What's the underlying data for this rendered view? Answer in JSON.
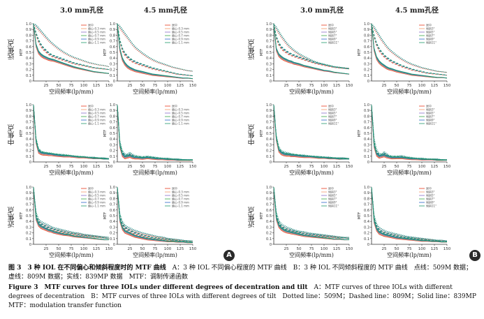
{
  "headers": {
    "col1": "3.0 mm孔径",
    "col2": "4.5 mm孔径",
    "col3": "3.0 mm孔径",
    "col4": "4.5 mm孔径"
  },
  "row_labels": [
    "远焦点",
    "中焦点",
    "近焦点"
  ],
  "panel_badges": [
    "A",
    "B"
  ],
  "axis": {
    "xlabel": "空间频率(lp/mm)",
    "ylabel": "MTF",
    "xticks": [
      "25",
      "50",
      "75",
      "100",
      "125",
      "150"
    ],
    "yticks": [
      "0",
      "0.1",
      "0.2",
      "0.3",
      "0.4",
      "0.5",
      "0.6",
      "0.7",
      "0.8",
      "0.9",
      "1.0"
    ]
  },
  "legend_A": [
    "居中",
    "偏心-0.3 mm",
    "偏心-0.5 mm",
    "偏心-0.7 mm",
    "偏心-0.9 mm",
    "偏心-1.1 mm"
  ],
  "legend_B": [
    "居中",
    "倾斜3°",
    "倾斜5°",
    "倾斜7°",
    "倾斜9°",
    "倾斜11°"
  ],
  "colors": {
    "centered": "#e63a1e",
    "s1": "#f29a6a",
    "s2": "#8a6ec8",
    "s3": "#3aa848",
    "s4": "#2a68c8",
    "s5": "#1f9a6a"
  },
  "caption": {
    "cn_title": "图 3　3 种 IOL 在不同偏心和倾斜程度时的 MTF 曲线",
    "cn_body": "A：3 种 IOL 不同偏心程度的 MTF 曲线　B：3 种 IOL 不同倾斜程度的 MTF 曲线　点线：509M 数据；虚线：809M 数据；实线：839MP 数据　MTF：调制传递函数",
    "en_title": "Figure 3　MTF curves for three IOLs under different degrees of decentration and tilt",
    "en_body": "A：MTF curves of three IOLs with different degrees of decentration　B：MTF curves of three IOLs with different degrees of tilt　Dotted line：509M；Dashed line：809M；Solid line：839MP　MTF：modulation transfer function"
  },
  "chart_data": {
    "type": "line",
    "xlabel": "空间频率(lp/mm)",
    "ylabel": "MTF",
    "xlim": [
      0,
      150
    ],
    "ylim": [
      0,
      1.0
    ],
    "x": [
      0,
      5,
      10,
      15,
      20,
      25,
      30,
      35,
      40,
      50,
      60,
      70,
      80,
      90,
      100,
      110,
      120,
      130,
      140,
      150
    ],
    "panels": [
      {
        "panel": "A",
        "column": "3.0 mm孔径",
        "focus": "远焦点",
        "series_labels": "legend_A",
        "families": {
          "dotted": [
            1.0,
            0.96,
            0.91,
            0.86,
            0.81,
            0.76,
            0.71,
            0.67,
            0.63,
            0.56,
            0.5,
            0.45,
            0.41,
            0.38,
            0.35,
            0.32,
            0.3,
            0.28,
            0.27,
            0.25
          ],
          "dashed": [
            1.0,
            0.82,
            0.7,
            0.62,
            0.56,
            0.52,
            0.48,
            0.45,
            0.43,
            0.4,
            0.37,
            0.34,
            0.31,
            0.29,
            0.27,
            0.25,
            0.23,
            0.22,
            0.21,
            0.2
          ],
          "solid": [
            1.0,
            0.62,
            0.5,
            0.45,
            0.42,
            0.4,
            0.38,
            0.37,
            0.36,
            0.33,
            0.3,
            0.27,
            0.24,
            0.22,
            0.2,
            0.18,
            0.16,
            0.15,
            0.14,
            0.13
          ]
        }
      },
      {
        "panel": "A",
        "column": "4.5 mm孔径",
        "focus": "远焦点",
        "series_labels": "legend_A",
        "families": {
          "dotted": [
            1.0,
            0.94,
            0.88,
            0.82,
            0.76,
            0.7,
            0.64,
            0.59,
            0.55,
            0.48,
            0.42,
            0.37,
            0.33,
            0.3,
            0.27,
            0.24,
            0.22,
            0.2,
            0.18,
            0.17
          ],
          "dashed": [
            1.0,
            0.7,
            0.55,
            0.47,
            0.42,
            0.38,
            0.35,
            0.33,
            0.31,
            0.28,
            0.25,
            0.22,
            0.2,
            0.18,
            0.16,
            0.14,
            0.12,
            0.11,
            0.1,
            0.09
          ],
          "solid": [
            1.0,
            0.55,
            0.38,
            0.3,
            0.25,
            0.22,
            0.2,
            0.18,
            0.17,
            0.15,
            0.13,
            0.11,
            0.1,
            0.09,
            0.08,
            0.07,
            0.06,
            0.05,
            0.05,
            0.04
          ]
        }
      },
      {
        "panel": "B",
        "column": "3.0 mm孔径",
        "focus": "远焦点",
        "series_labels": "legend_B",
        "families": {
          "dotted": [
            1.0,
            0.92,
            0.85,
            0.78,
            0.72,
            0.66,
            0.61,
            0.57,
            0.53,
            0.47,
            0.42,
            0.38,
            0.34,
            0.31,
            0.29,
            0.27,
            0.25,
            0.24,
            0.23,
            0.22
          ],
          "dashed": [
            1.0,
            0.76,
            0.65,
            0.58,
            0.54,
            0.51,
            0.48,
            0.46,
            0.44,
            0.41,
            0.38,
            0.35,
            0.32,
            0.3,
            0.28,
            0.26,
            0.24,
            0.23,
            0.22,
            0.21
          ],
          "solid": [
            1.0,
            0.55,
            0.45,
            0.41,
            0.38,
            0.36,
            0.34,
            0.33,
            0.31,
            0.29,
            0.26,
            0.24,
            0.22,
            0.2,
            0.18,
            0.17,
            0.15,
            0.14,
            0.13,
            0.12
          ]
        }
      },
      {
        "panel": "B",
        "column": "4.5 mm孔径",
        "focus": "远焦点",
        "series_labels": "legend_B",
        "families": {
          "dotted": [
            1.0,
            0.93,
            0.86,
            0.79,
            0.72,
            0.66,
            0.6,
            0.55,
            0.51,
            0.44,
            0.38,
            0.33,
            0.29,
            0.26,
            0.23,
            0.21,
            0.19,
            0.17,
            0.16,
            0.15
          ],
          "dashed": [
            1.0,
            0.78,
            0.64,
            0.55,
            0.49,
            0.44,
            0.4,
            0.37,
            0.34,
            0.3,
            0.26,
            0.23,
            0.2,
            0.18,
            0.16,
            0.14,
            0.13,
            0.12,
            0.11,
            0.1
          ],
          "solid": [
            1.0,
            0.55,
            0.4,
            0.33,
            0.29,
            0.26,
            0.23,
            0.21,
            0.2,
            0.17,
            0.15,
            0.13,
            0.11,
            0.1,
            0.09,
            0.08,
            0.07,
            0.06,
            0.06,
            0.05
          ]
        }
      },
      {
        "panel": "A",
        "column": "3.0 mm孔径",
        "focus": "中焦点",
        "series_labels": "legend_A",
        "families": {
          "dotted": [
            1.0,
            0.4,
            0.22,
            0.17,
            0.15,
            0.15,
            0.14,
            0.14,
            0.13,
            0.12,
            0.12,
            0.11,
            0.1,
            0.09,
            0.09,
            0.08,
            0.08,
            0.07,
            0.07,
            0.06
          ],
          "dashed": [
            1.0,
            0.38,
            0.2,
            0.16,
            0.15,
            0.14,
            0.14,
            0.13,
            0.13,
            0.12,
            0.11,
            0.1,
            0.09,
            0.09,
            0.08,
            0.07,
            0.07,
            0.06,
            0.06,
            0.06
          ],
          "solid": [
            1.0,
            0.35,
            0.18,
            0.15,
            0.14,
            0.14,
            0.13,
            0.13,
            0.12,
            0.11,
            0.1,
            0.1,
            0.09,
            0.08,
            0.08,
            0.07,
            0.06,
            0.06,
            0.05,
            0.05
          ]
        }
      },
      {
        "panel": "A",
        "column": "4.5 mm孔径",
        "focus": "中焦点",
        "series_labels": "legend_A",
        "families": {
          "dotted": [
            1.0,
            0.35,
            0.18,
            0.12,
            0.12,
            0.15,
            0.12,
            0.1,
            0.09,
            0.08,
            0.09,
            0.08,
            0.07,
            0.06,
            0.06,
            0.05,
            0.05,
            0.04,
            0.04,
            0.04
          ],
          "dashed": [
            1.0,
            0.3,
            0.15,
            0.1,
            0.1,
            0.12,
            0.1,
            0.08,
            0.08,
            0.07,
            0.08,
            0.07,
            0.06,
            0.05,
            0.05,
            0.04,
            0.04,
            0.04,
            0.03,
            0.03
          ],
          "solid": [
            1.0,
            0.28,
            0.12,
            0.08,
            0.09,
            0.1,
            0.08,
            0.07,
            0.07,
            0.06,
            0.07,
            0.06,
            0.05,
            0.05,
            0.04,
            0.04,
            0.03,
            0.03,
            0.03,
            0.03
          ]
        }
      },
      {
        "panel": "B",
        "column": "3.0 mm孔径",
        "focus": "中焦点",
        "series_labels": "legend_B",
        "families": {
          "dotted": [
            1.0,
            0.45,
            0.25,
            0.18,
            0.16,
            0.15,
            0.14,
            0.13,
            0.12,
            0.11,
            0.11,
            0.1,
            0.09,
            0.09,
            0.08,
            0.08,
            0.07,
            0.07,
            0.07,
            0.06
          ],
          "dashed": [
            1.0,
            0.42,
            0.22,
            0.16,
            0.14,
            0.13,
            0.13,
            0.12,
            0.12,
            0.11,
            0.1,
            0.09,
            0.09,
            0.08,
            0.08,
            0.07,
            0.07,
            0.06,
            0.06,
            0.06
          ],
          "solid": [
            1.0,
            0.4,
            0.2,
            0.15,
            0.13,
            0.12,
            0.12,
            0.11,
            0.11,
            0.1,
            0.09,
            0.09,
            0.08,
            0.07,
            0.07,
            0.06,
            0.06,
            0.05,
            0.05,
            0.05
          ]
        }
      },
      {
        "panel": "B",
        "column": "4.5 mm孔径",
        "focus": "中焦点",
        "series_labels": "legend_B",
        "families": {
          "dotted": [
            1.0,
            0.4,
            0.2,
            0.13,
            0.12,
            0.16,
            0.13,
            0.1,
            0.09,
            0.09,
            0.1,
            0.08,
            0.07,
            0.06,
            0.06,
            0.05,
            0.05,
            0.05,
            0.04,
            0.04
          ],
          "dashed": [
            1.0,
            0.32,
            0.16,
            0.11,
            0.11,
            0.13,
            0.11,
            0.09,
            0.08,
            0.08,
            0.08,
            0.07,
            0.06,
            0.05,
            0.05,
            0.05,
            0.04,
            0.04,
            0.04,
            0.03
          ],
          "solid": [
            1.0,
            0.28,
            0.13,
            0.09,
            0.1,
            0.11,
            0.09,
            0.08,
            0.07,
            0.07,
            0.07,
            0.06,
            0.05,
            0.05,
            0.04,
            0.04,
            0.04,
            0.03,
            0.03,
            0.03
          ]
        }
      },
      {
        "panel": "A",
        "column": "3.0 mm孔径",
        "focus": "近焦点",
        "series_labels": "legend_A",
        "families": {
          "dotted": [
            1.0,
            0.55,
            0.42,
            0.38,
            0.36,
            0.34,
            0.32,
            0.3,
            0.28,
            0.26,
            0.24,
            0.22,
            0.2,
            0.19,
            0.17,
            0.16,
            0.15,
            0.14,
            0.13,
            0.12
          ],
          "dashed": [
            1.0,
            0.5,
            0.38,
            0.34,
            0.32,
            0.3,
            0.28,
            0.27,
            0.25,
            0.23,
            0.21,
            0.19,
            0.18,
            0.16,
            0.15,
            0.14,
            0.13,
            0.12,
            0.11,
            0.1
          ],
          "solid": [
            1.0,
            0.45,
            0.34,
            0.3,
            0.28,
            0.26,
            0.24,
            0.23,
            0.21,
            0.19,
            0.17,
            0.16,
            0.14,
            0.13,
            0.12,
            0.11,
            0.1,
            0.09,
            0.08,
            0.08
          ]
        }
      },
      {
        "panel": "A",
        "column": "4.5 mm孔径",
        "focus": "近焦点",
        "series_labels": "legend_A",
        "families": {
          "dotted": [
            1.0,
            0.52,
            0.38,
            0.32,
            0.29,
            0.27,
            0.25,
            0.23,
            0.22,
            0.19,
            0.17,
            0.15,
            0.13,
            0.12,
            0.1,
            0.09,
            0.08,
            0.07,
            0.06,
            0.06
          ],
          "dashed": [
            1.0,
            0.48,
            0.34,
            0.28,
            0.25,
            0.23,
            0.21,
            0.19,
            0.18,
            0.15,
            0.13,
            0.11,
            0.1,
            0.09,
            0.08,
            0.07,
            0.06,
            0.05,
            0.05,
            0.04
          ],
          "solid": [
            1.0,
            0.42,
            0.28,
            0.22,
            0.2,
            0.18,
            0.16,
            0.14,
            0.13,
            0.11,
            0.09,
            0.08,
            0.07,
            0.06,
            0.05,
            0.05,
            0.04,
            0.04,
            0.03,
            0.03
          ]
        }
      },
      {
        "panel": "B",
        "column": "3.0 mm孔径",
        "focus": "近焦点",
        "series_labels": "legend_B",
        "families": {
          "dotted": [
            1.0,
            0.55,
            0.4,
            0.34,
            0.31,
            0.29,
            0.27,
            0.26,
            0.24,
            0.22,
            0.21,
            0.19,
            0.18,
            0.17,
            0.16,
            0.15,
            0.14,
            0.13,
            0.12,
            0.12
          ],
          "dashed": [
            1.0,
            0.5,
            0.36,
            0.3,
            0.27,
            0.25,
            0.24,
            0.23,
            0.22,
            0.2,
            0.18,
            0.17,
            0.16,
            0.15,
            0.14,
            0.13,
            0.12,
            0.11,
            0.11,
            0.1
          ],
          "solid": [
            1.0,
            0.45,
            0.32,
            0.27,
            0.24,
            0.22,
            0.21,
            0.2,
            0.19,
            0.17,
            0.15,
            0.14,
            0.13,
            0.12,
            0.11,
            0.1,
            0.09,
            0.09,
            0.08,
            0.08
          ]
        }
      },
      {
        "panel": "B",
        "column": "4.5 mm孔径",
        "focus": "近焦点",
        "series_labels": "legend_B",
        "families": {
          "dotted": [
            1.0,
            0.5,
            0.34,
            0.28,
            0.25,
            0.23,
            0.21,
            0.2,
            0.19,
            0.17,
            0.15,
            0.13,
            0.12,
            0.11,
            0.1,
            0.09,
            0.08,
            0.07,
            0.07,
            0.06
          ],
          "dashed": [
            1.0,
            0.45,
            0.3,
            0.24,
            0.21,
            0.19,
            0.18,
            0.17,
            0.16,
            0.14,
            0.12,
            0.11,
            0.1,
            0.09,
            0.08,
            0.07,
            0.06,
            0.06,
            0.05,
            0.05
          ],
          "solid": [
            1.0,
            0.4,
            0.26,
            0.2,
            0.18,
            0.16,
            0.15,
            0.14,
            0.13,
            0.11,
            0.1,
            0.09,
            0.08,
            0.07,
            0.06,
            0.06,
            0.05,
            0.05,
            0.04,
            0.04
          ]
        }
      }
    ]
  }
}
